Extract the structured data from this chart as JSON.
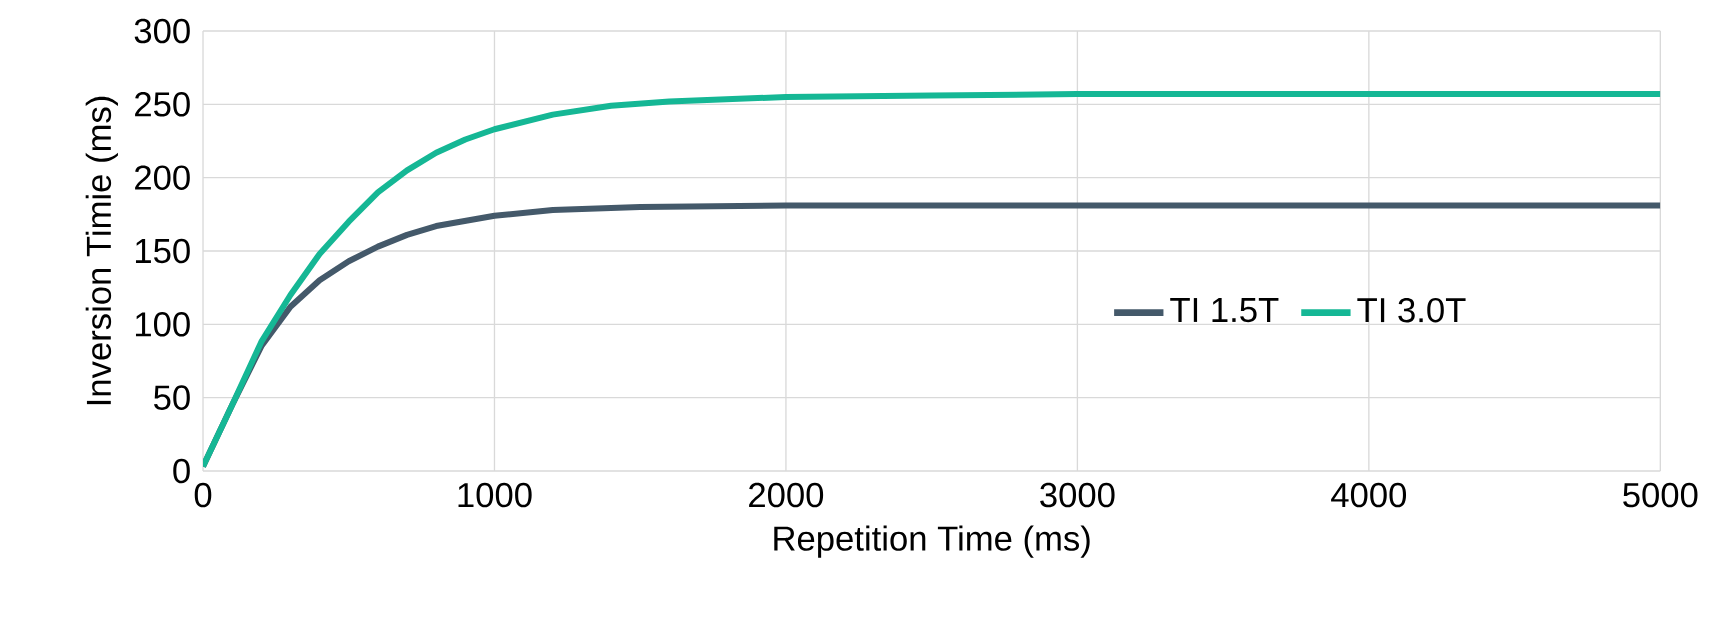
{
  "chart_data": {
    "type": "line",
    "xlabel": "Repetition Time (ms)",
    "ylabel": "Inversion Timie (ms)",
    "xlim": [
      0,
      5000
    ],
    "xticks": [
      0,
      1000,
      2000,
      3000,
      4000,
      5000
    ],
    "ylim": [
      0,
      300
    ],
    "yticks": [
      0,
      50,
      100,
      150,
      200,
      250,
      300
    ],
    "grid": true,
    "legend": "right",
    "marker": "none",
    "line_style": "solid",
    "series": [
      {
        "name": "TI 1.5T",
        "color": "#44596a",
        "x": [
          0,
          100,
          200,
          300,
          400,
          500,
          600,
          700,
          800,
          1000,
          1200,
          1500,
          2000,
          3000,
          5000
        ],
        "values": [
          3,
          45,
          85,
          112,
          130,
          143,
          153,
          161,
          167,
          174,
          178,
          180,
          181,
          181,
          181
        ]
      },
      {
        "name": "TI 3.0T",
        "color": "#15b795",
        "x": [
          0,
          100,
          200,
          300,
          400,
          500,
          600,
          700,
          800,
          900,
          1000,
          1200,
          1400,
          1600,
          2000,
          2500,
          3000,
          5000
        ],
        "values": [
          3,
          45,
          88,
          120,
          148,
          170,
          190,
          205,
          217,
          226,
          233,
          243,
          249,
          252,
          255,
          256,
          257,
          257
        ]
      }
    ]
  }
}
